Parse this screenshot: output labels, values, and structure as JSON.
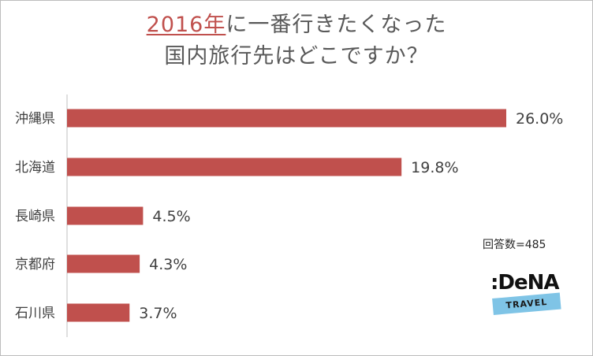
{
  "title": {
    "highlight": "2016年",
    "line1_rest": "に一番行きたくなった",
    "line2": "国内旅行先はどこですか？"
  },
  "note": "回答数=485",
  "logo": {
    "brand": ":DeNA",
    "sub": "TRAVEL"
  },
  "colors": {
    "bar": "#c0504d",
    "title_highlight": "#c0504d",
    "text": "#595959"
  },
  "chart_data": {
    "type": "bar",
    "orientation": "horizontal",
    "categories": [
      "沖縄県",
      "北海道",
      "長崎県",
      "京都府",
      "石川県"
    ],
    "values": [
      26.0,
      19.8,
      4.5,
      4.3,
      3.7
    ],
    "value_labels": [
      "26.0%",
      "19.8%",
      "4.5%",
      "4.3%",
      "3.7%"
    ],
    "unit": "%",
    "xlim": [
      0,
      26.0
    ],
    "grid": false,
    "legend": "none"
  }
}
